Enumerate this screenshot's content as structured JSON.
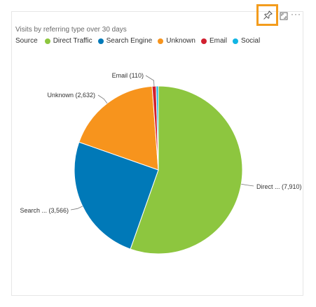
{
  "visual": {
    "title": "Visits by referring type over 30 days"
  },
  "toolbar": {
    "pin_icon": "pin-icon",
    "focus_icon": "focus-mode-icon",
    "more_label": "···"
  },
  "legend": {
    "title": "Source",
    "items": [
      {
        "label": "Direct Traffic",
        "color": "#8dc63f"
      },
      {
        "label": "Search Engine",
        "color": "#0079b8"
      },
      {
        "label": "Unknown",
        "color": "#f7941d"
      },
      {
        "label": "Email",
        "color": "#d1202f"
      },
      {
        "label": "Social",
        "color": "#11b5e4"
      }
    ]
  },
  "chart_data": {
    "type": "pie",
    "title": "Visits by referring type over 30 days",
    "legend_title": "Source",
    "legend_position": "top-left",
    "slices": [
      {
        "name": "Direct Traffic",
        "value": 7910,
        "label": "Direct ... (7,910)",
        "color": "#8dc63f"
      },
      {
        "name": "Search Engine",
        "value": 3566,
        "label": "Search ... (3,566)",
        "color": "#0079b8"
      },
      {
        "name": "Unknown",
        "value": 2632,
        "label": "Unknown (2,632)",
        "color": "#f7941d"
      },
      {
        "name": "Email",
        "value": 110,
        "label": "Email (110)",
        "color": "#d1202f"
      },
      {
        "name": "Social",
        "value": 60,
        "label": "",
        "color": "#11b5e4"
      }
    ]
  }
}
